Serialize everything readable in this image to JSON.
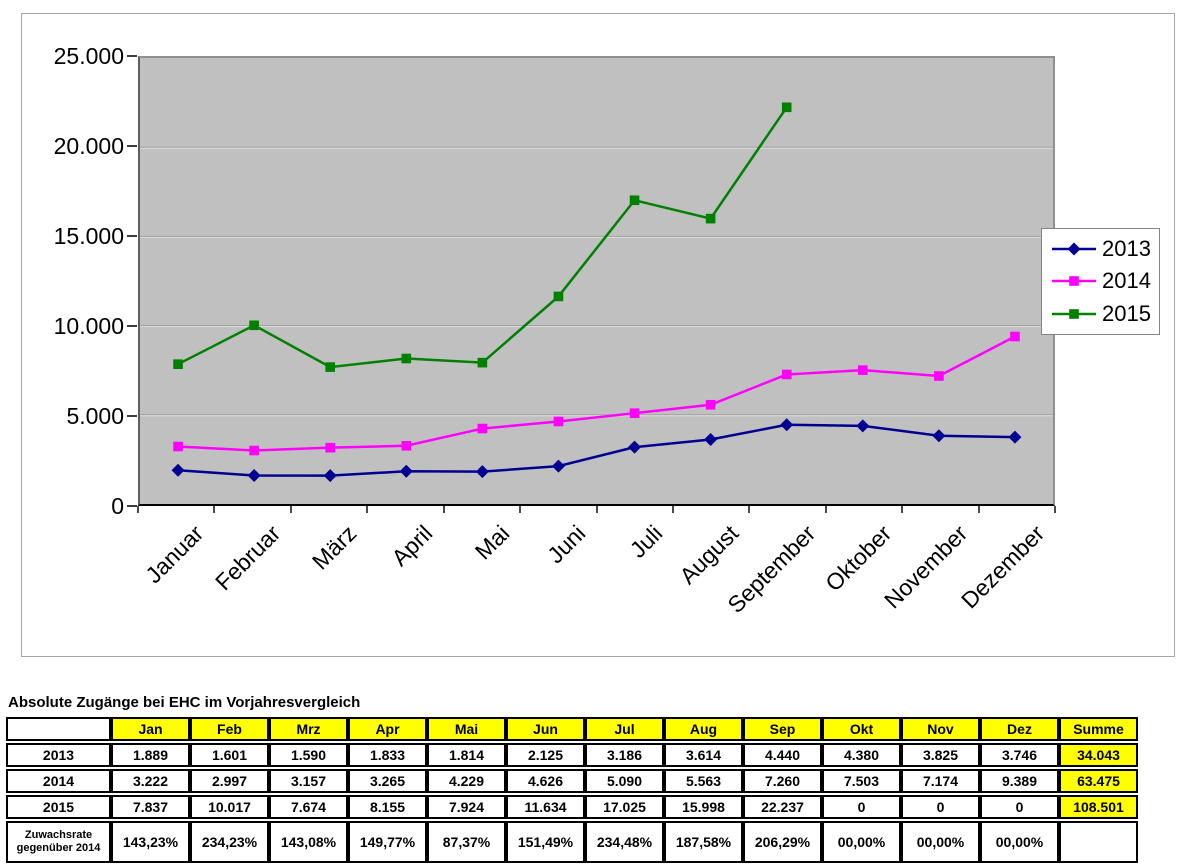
{
  "chart": {
    "y_axis": {
      "tick_labels": [
        "25.000",
        "20.000",
        "15.000",
        "10.000",
        "5.000",
        "0"
      ],
      "tick_values": [
        25000,
        20000,
        15000,
        10000,
        5000,
        0
      ]
    },
    "legend": {
      "entries": [
        {
          "label": "2013",
          "color": "#000090",
          "marker": "diamond"
        },
        {
          "label": "2014",
          "color": "#ff00ff",
          "marker": "square"
        },
        {
          "label": "2015",
          "color": "#008000",
          "marker": "square"
        }
      ]
    }
  },
  "chart_data": {
    "type": "line",
    "title": "",
    "categories": [
      "Januar",
      "Februar",
      "März",
      "April",
      "Mai",
      "Juni",
      "Juli",
      "August",
      "September",
      "Oktober",
      "November",
      "Dezember"
    ],
    "series": [
      {
        "name": "2013",
        "color": "#000090",
        "marker": "diamond",
        "values": [
          1889,
          1601,
          1590,
          1833,
          1814,
          2125,
          3186,
          3614,
          4440,
          4380,
          3825,
          3746
        ]
      },
      {
        "name": "2014",
        "color": "#ff00ff",
        "marker": "square",
        "values": [
          3222,
          2997,
          3157,
          3265,
          4229,
          4626,
          5090,
          5563,
          7260,
          7503,
          7174,
          9389
        ]
      },
      {
        "name": "2015",
        "color": "#008000",
        "marker": "square",
        "values": [
          7837,
          10017,
          7674,
          8155,
          7924,
          11634,
          17025,
          15998,
          22237,
          null,
          null,
          null
        ]
      }
    ],
    "ylim": [
      0,
      25000
    ],
    "y_tick_interval": 5000,
    "grid": true,
    "gridline_color": "#9d9d9d",
    "plot_background": "#c0c0c0",
    "legend_position": "middle-right"
  },
  "table": {
    "title": "Absolute Zugänge bei EHC im Vorjahresvergleich",
    "columns": [
      "",
      "Jan",
      "Feb",
      "Mrz",
      "Apr",
      "Mai",
      "Jun",
      "Jul",
      "Aug",
      "Sep",
      "Okt",
      "Nov",
      "Dez",
      "Summe"
    ],
    "rows": [
      {
        "label": "2013",
        "label_small": false,
        "sum": "34.043",
        "sum_highlight": true,
        "values": [
          "1.889",
          "1.601",
          "1.590",
          "1.833",
          "1.814",
          "2.125",
          "3.186",
          "3.614",
          "4.440",
          "4.380",
          "3.825",
          "3.746"
        ]
      },
      {
        "label": "2014",
        "label_small": false,
        "sum": "63.475",
        "sum_highlight": true,
        "values": [
          "3.222",
          "2.997",
          "3.157",
          "3.265",
          "4.229",
          "4.626",
          "5.090",
          "5.563",
          "7.260",
          "7.503",
          "7.174",
          "9.389"
        ]
      },
      {
        "label": "2015",
        "label_small": false,
        "sum": "108.501",
        "sum_highlight": true,
        "values": [
          "7.837",
          "10.017",
          "7.674",
          "8.155",
          "7.924",
          "11.634",
          "17.025",
          "15.998",
          "22.237",
          "0",
          "0",
          "0"
        ]
      },
      {
        "label": "Zuwachsrate gegenüber 2014",
        "label_small": true,
        "sum": "",
        "sum_highlight": false,
        "values": [
          "143,23%",
          "234,23%",
          "143,08%",
          "149,77%",
          "87,37%",
          "151,49%",
          "234,48%",
          "187,58%",
          "206,29%",
          "00,00%",
          "00,00%",
          "00,00%"
        ]
      }
    ],
    "highlight_color": "#ffff00"
  }
}
